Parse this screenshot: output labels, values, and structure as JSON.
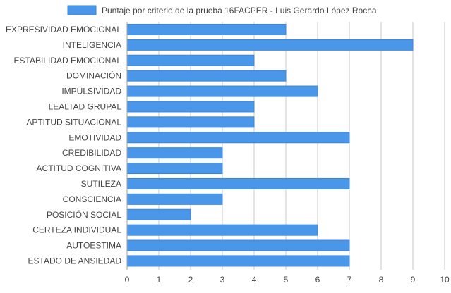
{
  "colors": {
    "bar_fill": "#4a96e9",
    "bar_stroke": "#3d86d8",
    "grid": "#c8c8c8",
    "axis": "#a0a0a0",
    "text": "#444444"
  },
  "chart_data": {
    "type": "bar",
    "orientation": "horizontal",
    "categories": [
      "EXPRESIVIDAD EMOCIONAL",
      "INTELIGENCIA",
      "ESTABILIDAD EMOCIONAL",
      "DOMINACIÓN",
      "IMPULSIVIDAD",
      "LEALTAD GRUPAL",
      "APTITUD SITUACIONAL",
      "EMOTIVIDAD",
      "CREDIBILIDAD",
      "ACTITUD COGNITIVA",
      "SUTILEZA",
      "CONSCIENCIA",
      "POSICIÓN SOCIAL",
      "CERTEZA INDIVIDUAL",
      "AUTOESTIMA",
      "ESTADO DE ANSIEDAD"
    ],
    "series": [
      {
        "name": "Puntaje por criterio de la prueba 16FACPER - Luis Gerardo López Rocha",
        "values": [
          5,
          9,
          4,
          5,
          6,
          4,
          4,
          7,
          3,
          3,
          7,
          3,
          2,
          6,
          7,
          7
        ]
      }
    ],
    "xlim": [
      0,
      10
    ],
    "xticks": [
      "0",
      "1",
      "2",
      "3",
      "4",
      "5",
      "6",
      "7",
      "8",
      "9",
      "10"
    ],
    "grid": true,
    "legend_position": "top-center"
  }
}
